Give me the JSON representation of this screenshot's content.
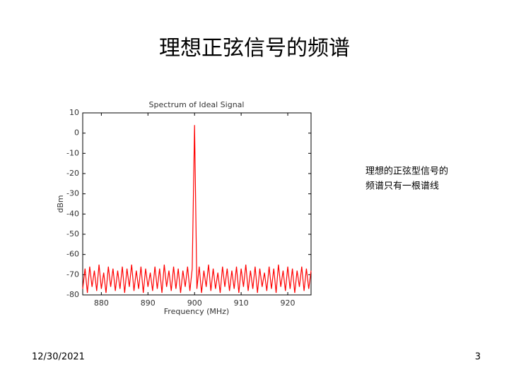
{
  "slide": {
    "title": "理想正弦信号的频谱",
    "note_lines": [
      "理想的正弦型信号的",
      "频谱只有一根谱线"
    ],
    "date": "12/30/2021",
    "page": "3"
  },
  "chart_data": {
    "type": "line",
    "title": "Spectrum of Ideal Signal",
    "x_label": "Frequency (MHz)",
    "y_label": "dBm",
    "color": "#ff0000",
    "x": [
      876,
      876.5,
      877,
      877.5,
      878,
      878.5,
      879,
      879.5,
      880,
      880.5,
      881,
      881.5,
      882,
      882.5,
      883,
      883.5,
      884,
      884.5,
      885,
      885.5,
      886,
      886.5,
      887,
      887.5,
      888,
      888.5,
      889,
      889.5,
      890,
      890.5,
      891,
      891.5,
      892,
      892.5,
      893,
      893.5,
      894,
      894.5,
      895,
      895.5,
      896,
      896.5,
      897,
      897.5,
      898,
      898.5,
      899,
      899.5,
      900,
      900.5,
      901,
      901.5,
      902,
      902.5,
      903,
      903.5,
      904,
      904.5,
      905,
      905.5,
      906,
      906.5,
      907,
      907.5,
      908,
      908.5,
      909,
      909.5,
      910,
      910.5,
      911,
      911.5,
      912,
      912.5,
      913,
      913.5,
      914,
      914.5,
      915,
      915.5,
      916,
      916.5,
      917,
      917.5,
      918,
      918.5,
      919,
      919.5,
      920,
      920.5,
      921,
      921.5,
      922,
      922.5,
      923,
      923.5,
      924,
      924.5,
      925
    ],
    "values": [
      -77,
      -67,
      -79,
      -66,
      -76,
      -68,
      -78,
      -65,
      -77,
      -69,
      -79,
      -66,
      -76,
      -67,
      -78,
      -68,
      -77,
      -66,
      -79,
      -67,
      -76,
      -65,
      -78,
      -68,
      -77,
      -66,
      -79,
      -67,
      -76,
      -69,
      -78,
      -66,
      -77,
      -67,
      -79,
      -65,
      -76,
      -68,
      -78,
      -66,
      -77,
      -67,
      -79,
      -68,
      -76,
      -66,
      -78,
      -67,
      4,
      -77,
      -66,
      -79,
      -68,
      -76,
      -65,
      -78,
      -67,
      -77,
      -69,
      -79,
      -66,
      -76,
      -67,
      -78,
      -68,
      -77,
      -66,
      -79,
      -67,
      -76,
      -65,
      -78,
      -68,
      -77,
      -66,
      -79,
      -67,
      -76,
      -69,
      -78,
      -66,
      -77,
      -67,
      -79,
      -65,
      -76,
      -68,
      -78,
      -66,
      -77,
      -67,
      -79,
      -68,
      -76,
      -66,
      -78,
      -67,
      -77,
      -68
    ],
    "xlim": [
      876,
      925
    ],
    "xticks": [
      880,
      890,
      900,
      910,
      920
    ],
    "ylim": [
      -80,
      10
    ],
    "yticks": [
      10,
      0,
      -10,
      -20,
      -30,
      -40,
      -50,
      -60,
      -70,
      -80
    ]
  }
}
